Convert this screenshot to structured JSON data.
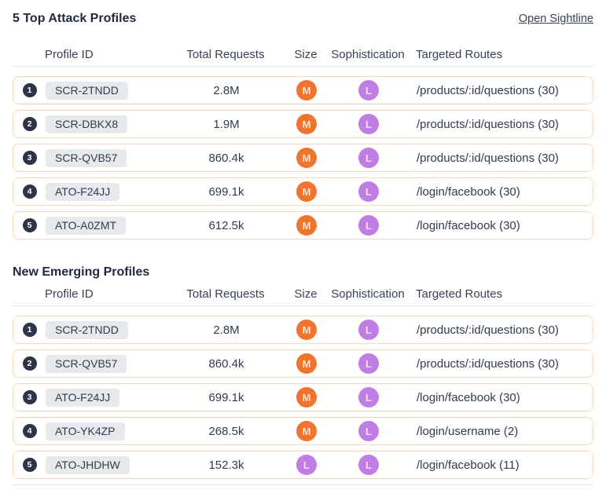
{
  "colors": {
    "accent_orange": "#F0742E",
    "accent_purple": "#C07EE4",
    "orange_badge_text": "#FFE3CE",
    "purple_badge_text": "#F2DEFB",
    "rank_badge_bg": "#2E3447",
    "row_border": "#F8D8BA",
    "divider": "#E7E7EA",
    "id_badge_bg": "#E8E9EC",
    "text_dark": "#333A4D"
  },
  "sections": [
    {
      "title": "5 Top Attack Profiles",
      "link_label": "Open Sightline",
      "columns": [
        "Profile ID",
        "Total Requests",
        "Size",
        "Sophistication",
        "Targeted Routes"
      ],
      "rows": [
        {
          "rank": "1",
          "profile_id": "SCR-2TNDD",
          "total_requests": "2.8M",
          "size": "M",
          "sophistication": "L",
          "targeted_routes": "/products/:id/questions (30)"
        },
        {
          "rank": "2",
          "profile_id": "SCR-DBKX8",
          "total_requests": "1.9M",
          "size": "M",
          "sophistication": "L",
          "targeted_routes": "/products/:id/questions (30)"
        },
        {
          "rank": "3",
          "profile_id": "SCR-QVB57",
          "total_requests": "860.4k",
          "size": "M",
          "sophistication": "L",
          "targeted_routes": "/products/:id/questions (30)"
        },
        {
          "rank": "4",
          "profile_id": "ATO-F24JJ",
          "total_requests": "699.1k",
          "size": "M",
          "sophistication": "L",
          "targeted_routes": "/login/facebook (30)"
        },
        {
          "rank": "5",
          "profile_id": "ATO-A0ZMT",
          "total_requests": "612.5k",
          "size": "M",
          "sophistication": "L",
          "targeted_routes": "/login/facebook (30)"
        }
      ]
    },
    {
      "title": "New Emerging Profiles",
      "columns": [
        "Profile ID",
        "Total Requests",
        "Size",
        "Sophistication",
        "Targeted Routes"
      ],
      "rows": [
        {
          "rank": "1",
          "profile_id": "SCR-2TNDD",
          "total_requests": "2.8M",
          "size": "M",
          "sophistication": "L",
          "targeted_routes": "/products/:id/questions (30)"
        },
        {
          "rank": "2",
          "profile_id": "SCR-QVB57",
          "total_requests": "860.4k",
          "size": "M",
          "sophistication": "L",
          "targeted_routes": "/products/:id/questions (30)"
        },
        {
          "rank": "3",
          "profile_id": "ATO-F24JJ",
          "total_requests": "699.1k",
          "size": "M",
          "sophistication": "L",
          "targeted_routes": "/login/facebook (30)"
        },
        {
          "rank": "4",
          "profile_id": "ATO-YK4ZP",
          "total_requests": "268.5k",
          "size": "M",
          "sophistication": "L",
          "targeted_routes": "/login/username (2)"
        },
        {
          "rank": "5",
          "profile_id": "ATO-JHDHW",
          "total_requests": "152.3k",
          "size": "L",
          "sophistication": "L",
          "targeted_routes": "/login/facebook (11)"
        }
      ]
    }
  ]
}
